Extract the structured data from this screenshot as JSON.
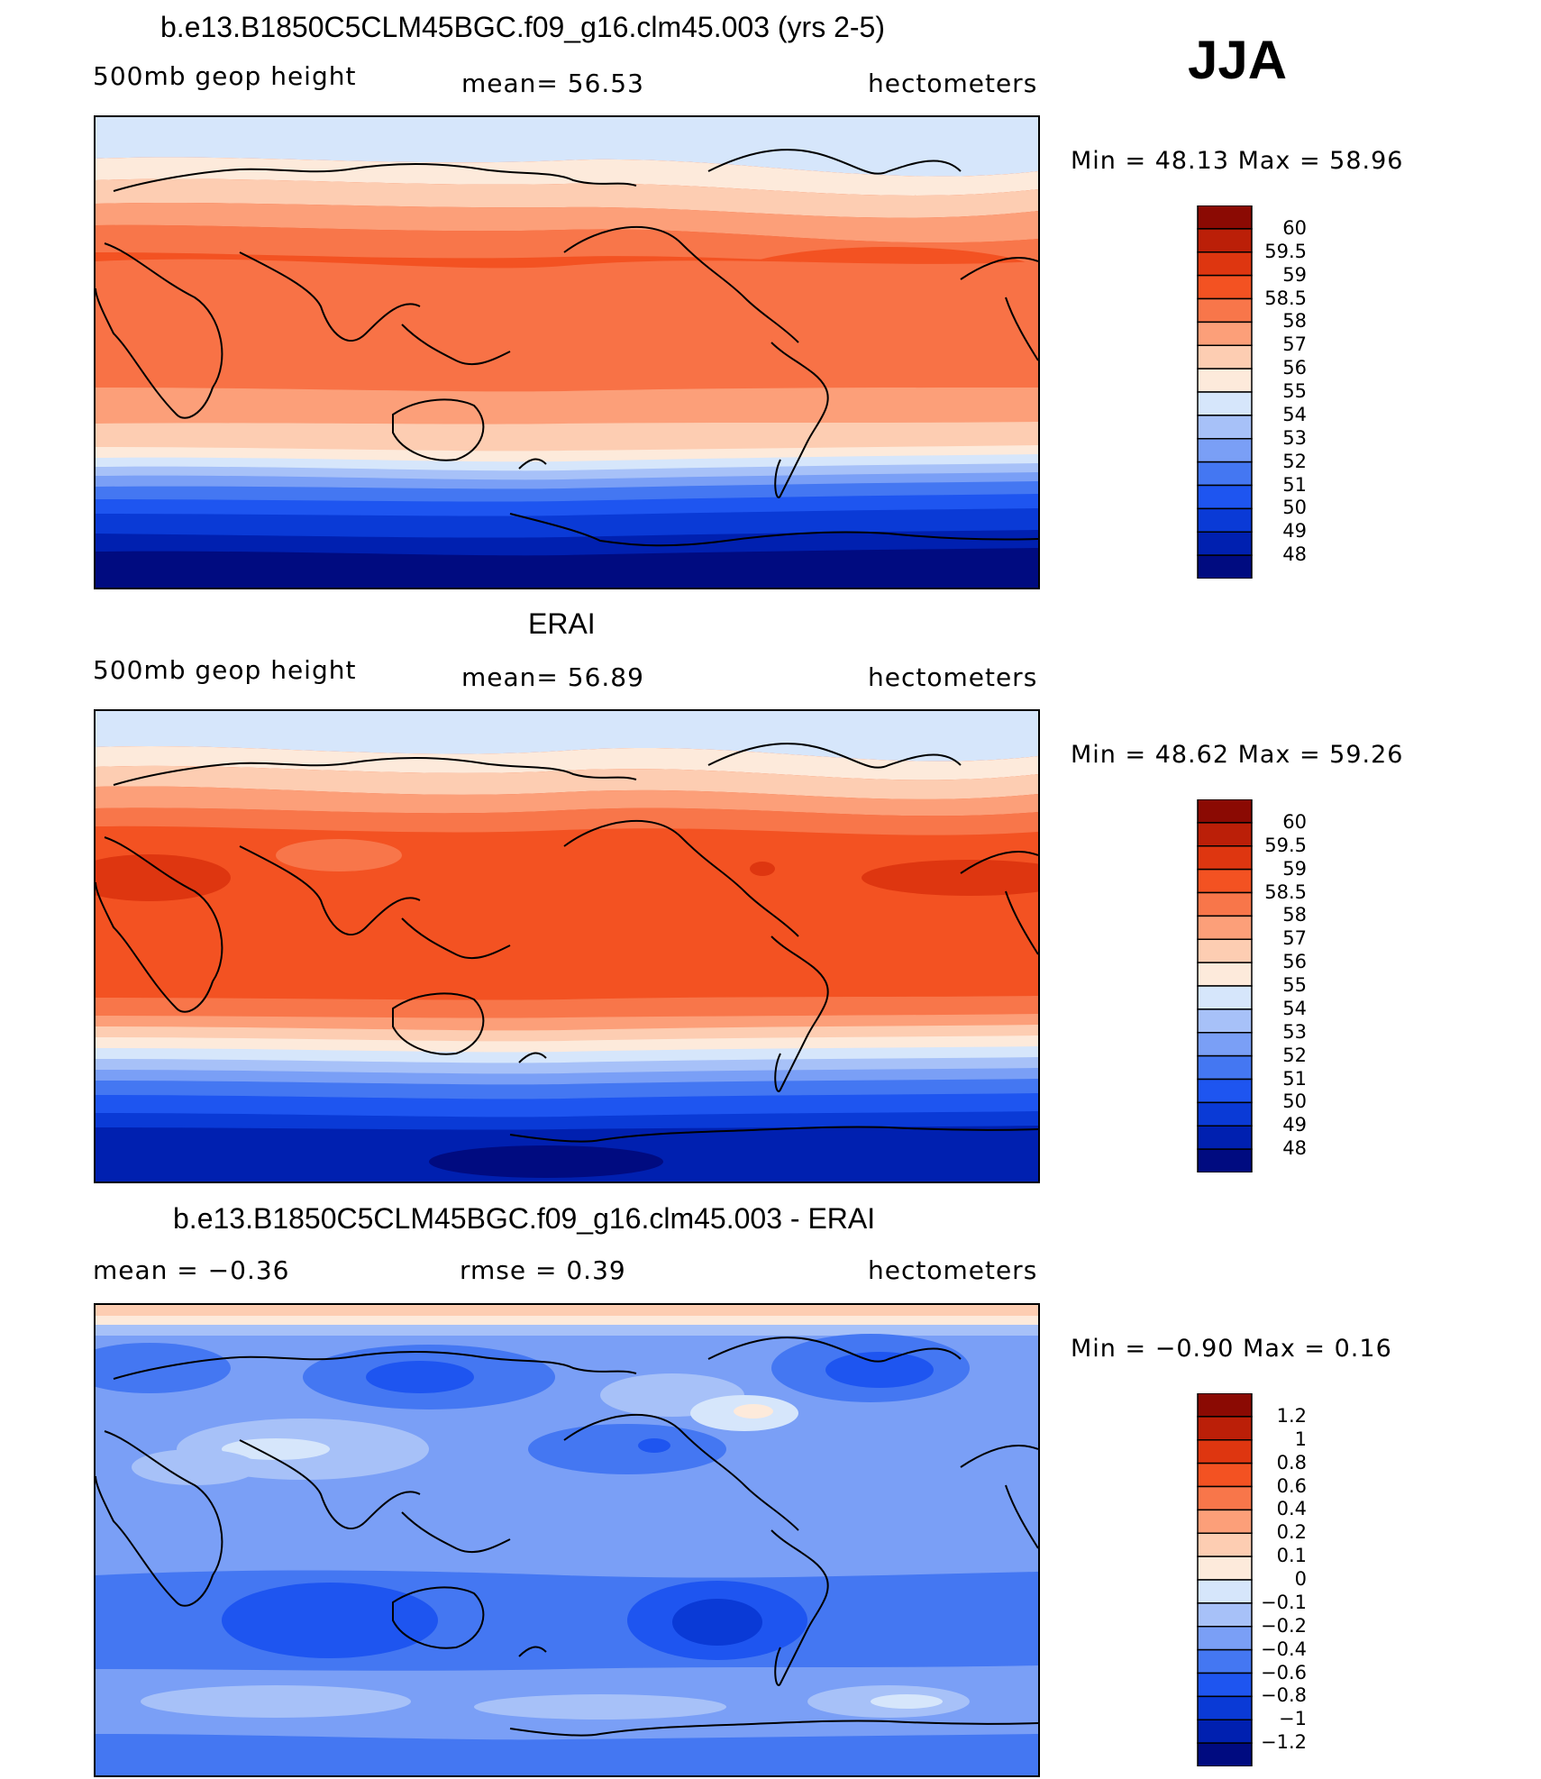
{
  "season": "JJA",
  "colors": {
    "main_scale": [
      "#000b80",
      "#0020b0",
      "#0a3ad6",
      "#1e55f0",
      "#4477f2",
      "#7a9ff6",
      "#a7c1f8",
      "#d6e6fb",
      "#fdeadb",
      "#fdcdb2",
      "#fc9f79",
      "#f8764a",
      "#f35222",
      "#de3610",
      "#bb1f08",
      "#8b0a03"
    ],
    "diff_scale": [
      "#000b80",
      "#0020b0",
      "#0a3ad6",
      "#1e55f0",
      "#4477f2",
      "#7a9ff6",
      "#a7c1f8",
      "#d6e6fb",
      "#fdeadb",
      "#fdcdb2",
      "#fc9f79",
      "#f8764a",
      "#f35222",
      "#de3610",
      "#bb1f08",
      "#8b0a03"
    ]
  },
  "panels": [
    {
      "title": "b.e13.B1850C5CLM45BGC.f09_g16.clm45.003 (yrs 2-5)",
      "left": "500mb geop height",
      "center": "mean=   56.53",
      "right": "hectometers",
      "minmax": "Min =   48.13 Max =   58.96",
      "labels": [
        "60",
        "59.5",
        "59",
        "58.5",
        "58",
        "57",
        "56",
        "55",
        "54",
        "53",
        "52",
        "51",
        "50",
        "49",
        "48"
      ]
    },
    {
      "title": "ERAI",
      "left": "500mb geop height",
      "center": "mean=   56.89",
      "right": "hectometers",
      "minmax": "Min =   48.62 Max =   59.26",
      "labels": [
        "60",
        "59.5",
        "59",
        "58.5",
        "58",
        "57",
        "56",
        "55",
        "54",
        "53",
        "52",
        "51",
        "50",
        "49",
        "48"
      ]
    },
    {
      "title": "b.e13.B1850C5CLM45BGC.f09_g16.clm45.003 - ERAI",
      "left": "mean =   −0.36",
      "center": "rmse =    0.39",
      "right": "hectometers",
      "minmax": "Min =   −0.90 Max =    0.16",
      "labels": [
        "1.2",
        "1",
        "0.8",
        "0.6",
        "0.4",
        "0.2",
        "0.1",
        "0",
        "−0.1",
        "−0.2",
        "−0.4",
        "−0.6",
        "−0.8",
        "−1",
        "−1.2"
      ]
    }
  ]
}
